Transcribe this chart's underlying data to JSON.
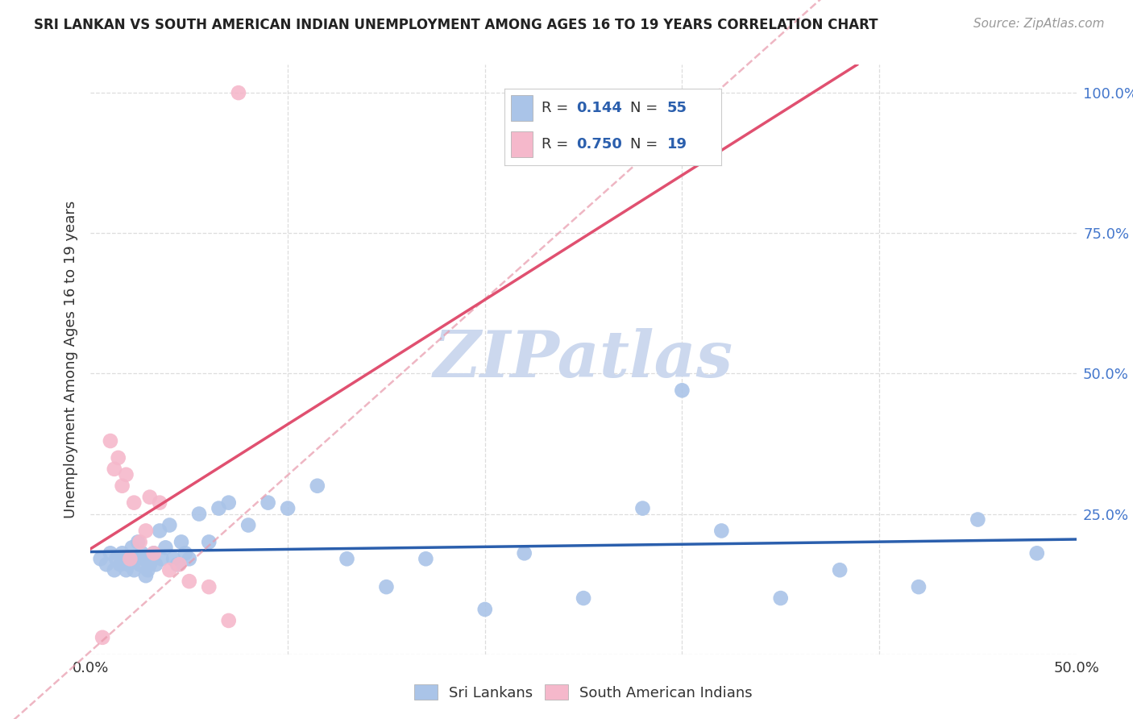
{
  "title": "SRI LANKAN VS SOUTH AMERICAN INDIAN UNEMPLOYMENT AMONG AGES 16 TO 19 YEARS CORRELATION CHART",
  "source": "Source: ZipAtlas.com",
  "ylabel": "Unemployment Among Ages 16 to 19 years",
  "xlim": [
    0.0,
    0.5
  ],
  "ylim": [
    0.0,
    1.05
  ],
  "xticks": [
    0.0,
    0.1,
    0.2,
    0.3,
    0.4,
    0.5
  ],
  "xticklabels": [
    "0.0%",
    "",
    "",
    "",
    "",
    "50.0%"
  ],
  "yticks": [
    0.0,
    0.25,
    0.5,
    0.75,
    1.0
  ],
  "right_yticklabels": [
    "",
    "25.0%",
    "50.0%",
    "75.0%",
    "100.0%"
  ],
  "sri_lankan_color": "#aac4e8",
  "south_american_color": "#f5b8cb",
  "sri_lankan_line_color": "#2b5fad",
  "south_american_line_color": "#e05070",
  "south_american_line_color_dash": "#e898aa",
  "watermark_color": "#ccd8ee",
  "legend_R1": "0.144",
  "legend_N1": "55",
  "legend_R2": "0.750",
  "legend_N2": "19",
  "sri_lankan_x": [
    0.005,
    0.008,
    0.01,
    0.012,
    0.013,
    0.015,
    0.016,
    0.017,
    0.018,
    0.019,
    0.02,
    0.021,
    0.022,
    0.023,
    0.024,
    0.025,
    0.026,
    0.027,
    0.028,
    0.029,
    0.03,
    0.031,
    0.032,
    0.033,
    0.035,
    0.036,
    0.038,
    0.04,
    0.042,
    0.044,
    0.046,
    0.048,
    0.05,
    0.055,
    0.06,
    0.065,
    0.07,
    0.08,
    0.09,
    0.1,
    0.115,
    0.13,
    0.15,
    0.17,
    0.2,
    0.22,
    0.25,
    0.28,
    0.3,
    0.32,
    0.35,
    0.38,
    0.42,
    0.45,
    0.48
  ],
  "sri_lankan_y": [
    0.17,
    0.16,
    0.18,
    0.15,
    0.17,
    0.16,
    0.18,
    0.17,
    0.15,
    0.16,
    0.17,
    0.19,
    0.15,
    0.17,
    0.2,
    0.16,
    0.18,
    0.17,
    0.14,
    0.15,
    0.16,
    0.17,
    0.18,
    0.16,
    0.22,
    0.17,
    0.19,
    0.23,
    0.17,
    0.16,
    0.2,
    0.18,
    0.17,
    0.25,
    0.2,
    0.26,
    0.27,
    0.23,
    0.27,
    0.26,
    0.3,
    0.17,
    0.12,
    0.17,
    0.08,
    0.18,
    0.1,
    0.26,
    0.47,
    0.22,
    0.1,
    0.15,
    0.12,
    0.24,
    0.18
  ],
  "south_american_x": [
    0.006,
    0.01,
    0.012,
    0.014,
    0.016,
    0.018,
    0.02,
    0.022,
    0.025,
    0.028,
    0.03,
    0.032,
    0.035,
    0.04,
    0.045,
    0.05,
    0.06,
    0.07,
    0.075
  ],
  "south_american_y": [
    0.03,
    0.38,
    0.33,
    0.35,
    0.3,
    0.32,
    0.17,
    0.27,
    0.2,
    0.22,
    0.28,
    0.18,
    0.27,
    0.15,
    0.16,
    0.13,
    0.12,
    0.06,
    1.0
  ],
  "grid_color": "#dddddd",
  "tick_color": "#4477cc"
}
